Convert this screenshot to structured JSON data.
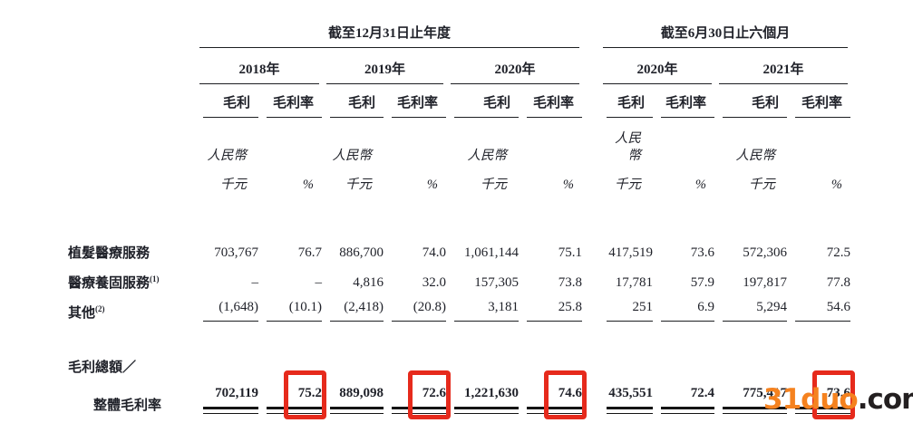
{
  "page": {
    "background": "#ffffff",
    "text_color": "#20222a",
    "highlight_red": "#e62a1c"
  },
  "table": {
    "group_headers": {
      "annual": "截至12月31日止年度",
      "interim": "截至6月30日止六個月"
    },
    "year_headers": [
      "2018年",
      "2019年",
      "2020年",
      "2020年",
      "2021年"
    ],
    "column_headers": {
      "gross_profit": "毛利",
      "gross_margin": "毛利率"
    },
    "units": {
      "currency_name": "人民幣",
      "currency_unit": "千元",
      "percent_sign": "%"
    },
    "rows": [
      {
        "label": "植髮醫療服務",
        "note": "",
        "values": [
          "703,767",
          "76.7",
          "886,700",
          "74.0",
          "1,061,144",
          "75.1",
          "417,519",
          "73.6",
          "572,306",
          "72.5"
        ]
      },
      {
        "label": "醫療養固服務",
        "note": "(1)",
        "values": [
          "–",
          "–",
          "4,816",
          "32.0",
          "157,305",
          "73.8",
          "17,781",
          "57.9",
          "197,817",
          "77.8"
        ]
      },
      {
        "label": "其他",
        "note": "(2)",
        "values": [
          "(1,648)",
          "(10.1)",
          "(2,418)",
          "(20.8)",
          "3,181",
          "25.8",
          "251",
          "6.9",
          "5,294",
          "54.6"
        ]
      }
    ],
    "total_row": {
      "label_line1": "毛利總額／",
      "label_line2": "整體毛利率",
      "values": [
        "702,119",
        "75.2",
        "889,098",
        "72.6",
        "1,221,630",
        "74.6",
        "435,551",
        "72.4",
        "775,417",
        "73.6"
      ],
      "highlighted_values": [
        "75.2",
        "72.6",
        "74.6",
        "73.6"
      ]
    }
  },
  "watermark": {
    "brand": "31duo",
    "suffix": ".com",
    "brand_color": "#f5821f",
    "suffix_color": "#231f20"
  }
}
